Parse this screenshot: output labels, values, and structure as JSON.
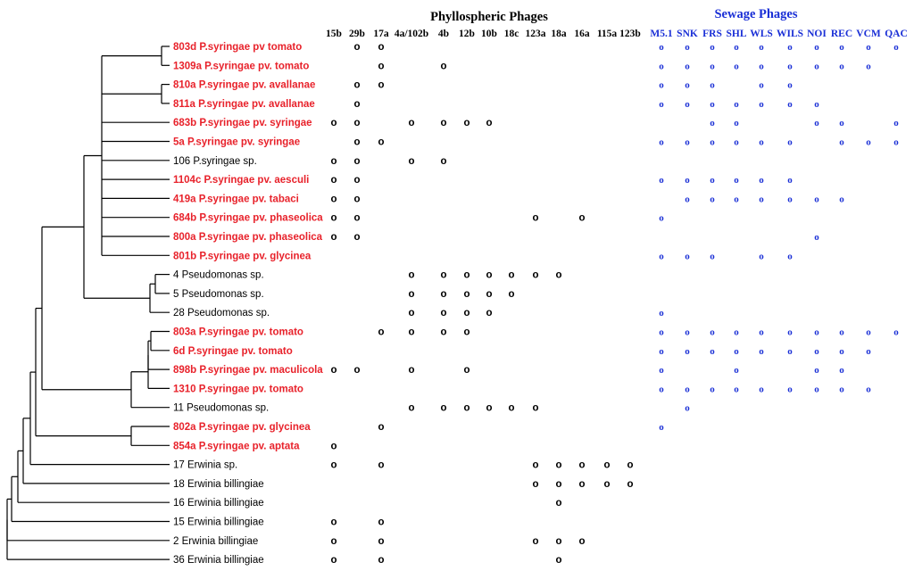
{
  "colors": {
    "highlight": "#e8222b",
    "normal": "#000000",
    "sewage": "#1a2fd6",
    "tree": "#000000"
  },
  "groups": {
    "phyllo_title": "Phyllospheric Phages",
    "sewage_title": "Sewage Phages"
  },
  "phyllo_phages": [
    "15b",
    "29b",
    "17a",
    "4a/102b",
    "4b",
    "12b",
    "10b",
    "18c",
    "123a",
    "18a",
    "16a",
    "115a",
    "123b"
  ],
  "sewage_phages": [
    "M5.1",
    "SNK",
    "FRS",
    "SHL",
    "WLS",
    "WILS",
    "NOI",
    "REC",
    "VCM",
    "QAC"
  ],
  "mark_symbol": "o",
  "strains": [
    {
      "label": "803d P.syringae pv tomato",
      "highlight": true,
      "phyllo": [
        "29b",
        "17a"
      ],
      "sewage": [
        "M5.1",
        "SNK",
        "FRS",
        "SHL",
        "WLS",
        "WILS",
        "NOI",
        "REC",
        "VCM",
        "QAC"
      ]
    },
    {
      "label": "1309a P.syringae pv. tomato",
      "highlight": true,
      "phyllo": [
        "17a",
        "4b"
      ],
      "sewage": [
        "M5.1",
        "SNK",
        "FRS",
        "SHL",
        "WLS",
        "WILS",
        "NOI",
        "REC",
        "VCM"
      ]
    },
    {
      "label": "810a P.syringae pv. avallanae",
      "highlight": true,
      "phyllo": [
        "29b",
        "17a"
      ],
      "sewage": [
        "M5.1",
        "SNK",
        "FRS",
        "WLS",
        "WILS"
      ]
    },
    {
      "label": "811a P.syringae pv. avallanae",
      "highlight": true,
      "phyllo": [
        "29b"
      ],
      "sewage": [
        "M5.1",
        "SNK",
        "FRS",
        "SHL",
        "WLS",
        "WILS",
        "NOI"
      ]
    },
    {
      "label": "683b P.syringae pv. syringae",
      "highlight": true,
      "phyllo": [
        "15b",
        "29b",
        "4a/102b",
        "4b",
        "12b",
        "10b"
      ],
      "sewage": [
        "FRS",
        "SHL",
        "NOI",
        "REC",
        "QAC"
      ]
    },
    {
      "label": "5a P.syringae pv. syringae",
      "highlight": true,
      "phyllo": [
        "29b",
        "17a"
      ],
      "sewage": [
        "M5.1",
        "SNK",
        "FRS",
        "SHL",
        "WLS",
        "WILS",
        "REC",
        "VCM",
        "QAC"
      ]
    },
    {
      "label": "106 P.syringae sp.",
      "highlight": false,
      "phyllo": [
        "15b",
        "29b",
        "4a/102b",
        "4b"
      ],
      "sewage": []
    },
    {
      "label": "1104c P.syringae pv. aesculi",
      "highlight": true,
      "phyllo": [
        "15b",
        "29b"
      ],
      "sewage": [
        "M5.1",
        "SNK",
        "FRS",
        "SHL",
        "WLS",
        "WILS"
      ]
    },
    {
      "label": "419a P.syringae pv. tabaci",
      "highlight": true,
      "phyllo": [
        "15b",
        "29b"
      ],
      "sewage": [
        "SNK",
        "FRS",
        "SHL",
        "WLS",
        "WILS",
        "NOI",
        "REC"
      ]
    },
    {
      "label": "684b P.syringae pv. phaseolica",
      "highlight": true,
      "phyllo": [
        "15b",
        "29b",
        "123a",
        "16a"
      ],
      "sewage": [
        "M5.1"
      ]
    },
    {
      "label": "800a P.syringae pv. phaseolica",
      "highlight": true,
      "phyllo": [
        "15b",
        "29b"
      ],
      "sewage": [
        "NOI"
      ]
    },
    {
      "label": "801b P.syringae pv. glycinea",
      "highlight": true,
      "phyllo": [],
      "sewage": [
        "M5.1",
        "SNK",
        "FRS",
        "WLS",
        "WILS"
      ]
    },
    {
      "label": "4 Pseudomonas sp.",
      "highlight": false,
      "phyllo": [
        "4a/102b",
        "4b",
        "12b",
        "10b",
        "18c",
        "123a",
        "18a"
      ],
      "sewage": []
    },
    {
      "label": "5 Pseudomonas sp.",
      "highlight": false,
      "phyllo": [
        "4a/102b",
        "4b",
        "12b",
        "10b",
        "18c"
      ],
      "sewage": []
    },
    {
      "label": "28 Pseudomonas sp.",
      "highlight": false,
      "phyllo": [
        "4a/102b",
        "4b",
        "12b",
        "10b"
      ],
      "sewage": [
        "M5.1"
      ]
    },
    {
      "label": "803a P.syringae pv. tomato",
      "highlight": true,
      "phyllo": [
        "17a",
        "4a/102b",
        "4b",
        "12b"
      ],
      "sewage": [
        "M5.1",
        "SNK",
        "FRS",
        "SHL",
        "WLS",
        "WILS",
        "NOI",
        "REC",
        "VCM",
        "QAC"
      ]
    },
    {
      "label": "6d P.syringae pv. tomato",
      "highlight": true,
      "phyllo": [],
      "sewage": [
        "M5.1",
        "SNK",
        "FRS",
        "SHL",
        "WLS",
        "WILS",
        "NOI",
        "REC",
        "VCM"
      ]
    },
    {
      "label": "898b P.syringae pv. maculicola",
      "highlight": true,
      "phyllo": [
        "15b",
        "29b",
        "4a/102b",
        "12b"
      ],
      "sewage": [
        "M5.1",
        "SHL",
        "NOI",
        "REC"
      ]
    },
    {
      "label": "1310 P.syringae pv. tomato",
      "highlight": true,
      "phyllo": [],
      "sewage": [
        "M5.1",
        "SNK",
        "FRS",
        "SHL",
        "WLS",
        "WILS",
        "NOI",
        "REC",
        "VCM"
      ]
    },
    {
      "label": "11 Pseudomonas sp.",
      "highlight": false,
      "phyllo": [
        "4a/102b",
        "4b",
        "12b",
        "10b",
        "18c",
        "123a"
      ],
      "sewage": [
        "SNK"
      ]
    },
    {
      "label": "802a P.syringae pv. glycinea",
      "highlight": true,
      "phyllo": [
        "17a"
      ],
      "sewage": [
        "M5.1"
      ]
    },
    {
      "label": "854a P.syringae pv. aptata",
      "highlight": true,
      "phyllo": [
        "15b"
      ],
      "sewage": []
    },
    {
      "label": "17 Erwinia sp.",
      "highlight": false,
      "phyllo": [
        "15b",
        "17a",
        "123a",
        "18a",
        "16a",
        "115a",
        "123b"
      ],
      "sewage": []
    },
    {
      "label": "18 Erwinia billingiae",
      "highlight": false,
      "phyllo": [
        "123a",
        "18a",
        "16a",
        "115a",
        "123b"
      ],
      "sewage": []
    },
    {
      "label": "16 Erwinia billingiae",
      "highlight": false,
      "phyllo": [
        "18a"
      ],
      "sewage": []
    },
    {
      "label": "15 Erwinia billingiae",
      "highlight": false,
      "phyllo": [
        "15b",
        "17a"
      ],
      "sewage": []
    },
    {
      "label": "2 Erwinia billingiae",
      "highlight": false,
      "phyllo": [
        "15b",
        "17a",
        "123a",
        "18a",
        "16a"
      ],
      "sewage": []
    },
    {
      "label": "36 Erwinia billingiae",
      "highlight": false,
      "phyllo": [
        "15b",
        "17a",
        "18a"
      ],
      "sewage": []
    }
  ]
}
